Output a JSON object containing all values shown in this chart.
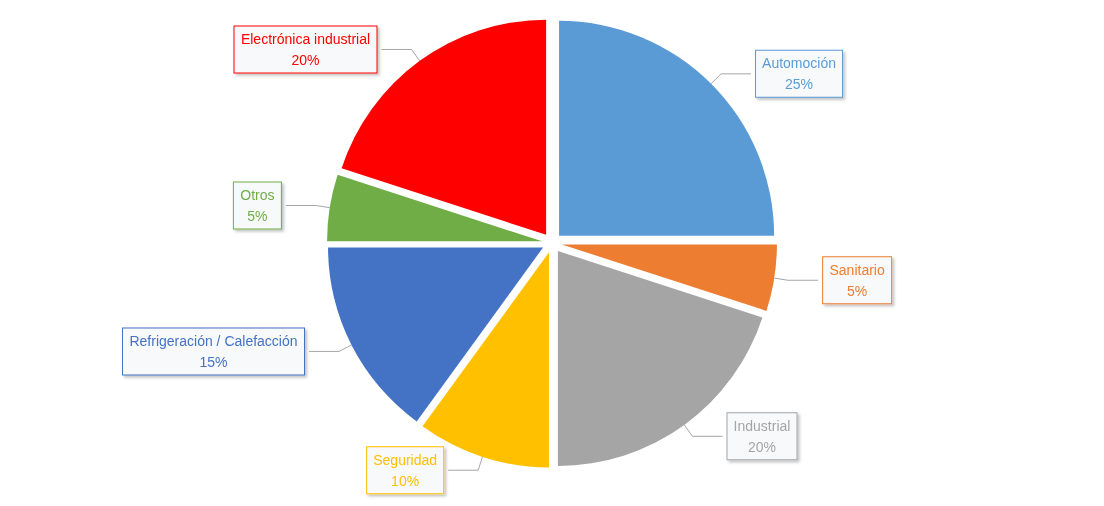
{
  "chart_data": {
    "type": "pie",
    "categories": [
      "Automoción",
      "Sanitario",
      "Industrial",
      "Seguridad",
      "Refrigeración / Calefacción",
      "Otros",
      "Electrónica industrial"
    ],
    "values": [
      25,
      5,
      20,
      10,
      15,
      5,
      20
    ],
    "value_labels": [
      "25%",
      "5%",
      "20%",
      "10%",
      "15%",
      "5%",
      "20%"
    ],
    "colors": [
      "#5b9bd5",
      "#ed7d31",
      "#a5a5a5",
      "#ffc000",
      "#4472c4",
      "#70ad47",
      "#ff0000"
    ],
    "legend": false
  }
}
